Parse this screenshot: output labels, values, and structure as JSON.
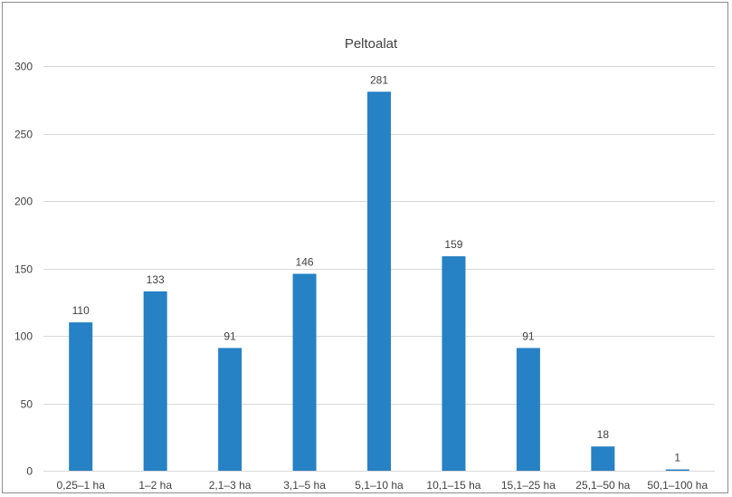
{
  "chart_data": {
    "type": "bar",
    "title": "Peltoalat",
    "categories": [
      "0,25–1 ha",
      "1–2 ha",
      "2,1–3 ha",
      "3,1–5 ha",
      "5,1–10 ha",
      "10,1–15 ha",
      "15,1–25 ha",
      "25,1–50 ha",
      "50,1–100 ha"
    ],
    "values": [
      110,
      133,
      91,
      146,
      281,
      159,
      91,
      18,
      1
    ],
    "data_labels": [
      "110",
      "133",
      "91",
      "146",
      "281",
      "159",
      "91",
      "18",
      "1"
    ],
    "ylim": [
      0,
      300
    ],
    "yticks": [
      "0",
      "50",
      "100",
      "150",
      "200",
      "250",
      "300"
    ],
    "ytick_values": [
      0,
      50,
      100,
      150,
      200,
      250,
      300
    ],
    "grid": true,
    "legend": "none",
    "bar_color": "#2681c5",
    "xlabel": "",
    "ylabel": ""
  }
}
